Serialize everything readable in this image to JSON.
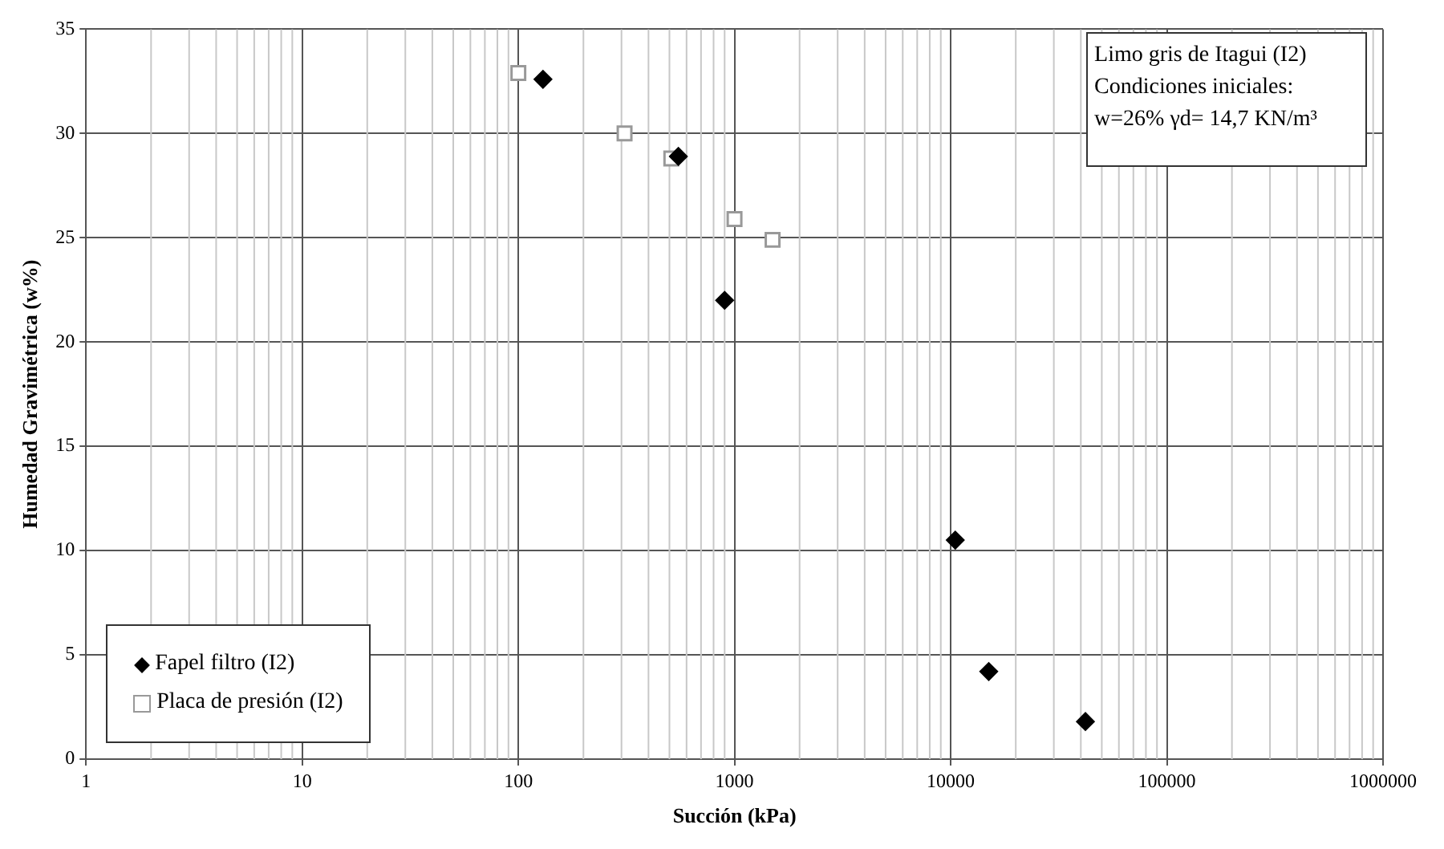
{
  "chart_data": {
    "type": "scatter",
    "xlabel": "Succión (kPa)",
    "ylabel": "Humedad Gravimétrica (w%)",
    "log": "x",
    "xlim": [
      1,
      1000000
    ],
    "xticks": [
      1,
      10,
      100,
      1000,
      10000,
      100000,
      1000000
    ],
    "ylim": [
      0,
      35
    ],
    "yticks": [
      0,
      5,
      10,
      15,
      20,
      25,
      30,
      35
    ],
    "grid": true,
    "legend": "bottom left",
    "annotations": [
      "Limo gris de Itagui (I2)\nCondiciones iniciales:\nw=26% γd= 14,7 KN/m³"
    ],
    "series": [
      {
        "name": "Fapel filtro (I2)",
        "color": "#000000",
        "marker": "diamond",
        "x": [
          130,
          550,
          900,
          10500,
          15000,
          42000
        ],
        "values": [
          32.6,
          28.9,
          22,
          10.5,
          4.2,
          1.8
        ]
      },
      {
        "name": "Placa de presión (I2)",
        "color": "#999999",
        "marker": "square",
        "x": [
          100,
          310,
          510,
          1000,
          1500
        ],
        "values": [
          32.9,
          30,
          28.8,
          25.9,
          24.9
        ]
      }
    ]
  }
}
